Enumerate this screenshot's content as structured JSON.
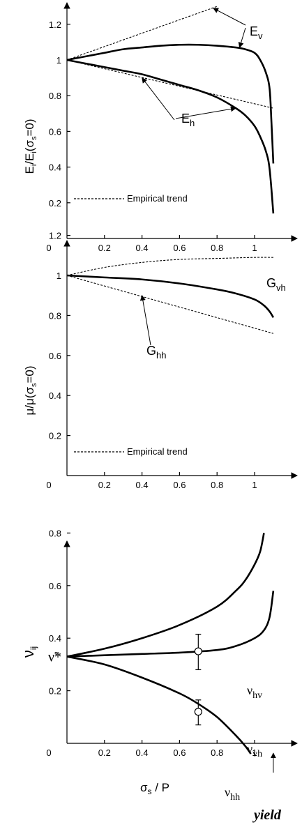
{
  "chart_data": [
    {
      "type": "line",
      "ylabel": "E_i/E_i(σ_s=0)",
      "xlim": [
        0,
        1.15
      ],
      "ylim": [
        0,
        1.32
      ],
      "xticks": [
        "0",
        "0.2",
        "0.4",
        "0.6",
        "0.8",
        "1"
      ],
      "yticks": [
        "0.2",
        "0.4",
        "0.6",
        "0.8",
        "1",
        "1.2"
      ],
      "legend": {
        "label": "Empirical trend",
        "placement": "bottom-left",
        "style": "dashed"
      },
      "series": [
        {
          "name": "E_v",
          "style": "solid",
          "x": [
            0,
            0.1,
            0.2,
            0.3,
            0.4,
            0.5,
            0.6,
            0.7,
            0.8,
            0.9,
            0.95,
            1.0,
            1.03,
            1.06,
            1.08,
            1.09,
            1.1
          ],
          "y": [
            1.0,
            1.02,
            1.04,
            1.06,
            1.07,
            1.08,
            1.085,
            1.085,
            1.08,
            1.07,
            1.06,
            1.04,
            1.0,
            0.93,
            0.84,
            0.65,
            0.42
          ]
        },
        {
          "name": "E_h",
          "style": "solid",
          "x": [
            0,
            0.1,
            0.2,
            0.3,
            0.4,
            0.5,
            0.6,
            0.7,
            0.8,
            0.9,
            0.95,
            1.0,
            1.03,
            1.06,
            1.08,
            1.1
          ],
          "y": [
            1.0,
            0.98,
            0.96,
            0.94,
            0.92,
            0.89,
            0.86,
            0.83,
            0.79,
            0.73,
            0.69,
            0.63,
            0.57,
            0.49,
            0.39,
            0.14
          ]
        },
        {
          "name": "E_v",
          "style": "dashed",
          "x": [
            0,
            0.8
          ],
          "y": [
            1.0,
            1.3
          ]
        },
        {
          "name": "E_h",
          "style": "dashed",
          "x": [
            0,
            1.1
          ],
          "y": [
            1.0,
            0.73
          ]
        }
      ],
      "annotations": [
        {
          "label": "E_v",
          "arrow_to": {
            "x": 0.92,
            "y": 1.07
          }
        },
        {
          "label": "E_v",
          "arrow_to": {
            "x": 0.78,
            "y": 1.29
          }
        },
        {
          "label": "E_h",
          "arrow_to": {
            "x": 0.9,
            "y": 0.73
          }
        },
        {
          "label": "E_h",
          "arrow_to": {
            "x": 0.4,
            "y": 0.9
          }
        }
      ]
    },
    {
      "type": "line",
      "ylabel": "μ/μ(σ_s=0)",
      "xlim": [
        0,
        1.15
      ],
      "ylim": [
        0,
        1.32
      ],
      "xticks": [
        "0",
        "0.2",
        "0.4",
        "0.6",
        "0.8",
        "1"
      ],
      "yticks": [
        "0.2",
        "0.4",
        "0.6",
        "0.8",
        "1",
        "1.2"
      ],
      "legend": {
        "label": "Empirical trend",
        "placement": "bottom-left",
        "style": "dashed"
      },
      "series": [
        {
          "name": "G_hh",
          "style": "solid",
          "x": [
            0,
            0.2,
            0.4,
            0.6,
            0.8,
            0.9,
            1.0,
            1.05,
            1.08,
            1.1
          ],
          "y": [
            1.0,
            0.99,
            0.98,
            0.96,
            0.93,
            0.91,
            0.88,
            0.85,
            0.82,
            0.79
          ]
        },
        {
          "name": "G_vh",
          "style": "dashed",
          "x": [
            0,
            0.2,
            0.4,
            0.6,
            0.8,
            1.0,
            1.1
          ],
          "y": [
            1.0,
            1.04,
            1.065,
            1.08,
            1.085,
            1.09,
            1.09
          ]
        },
        {
          "name": "G_hh",
          "style": "dashed",
          "x": [
            0,
            1.1
          ],
          "y": [
            1.0,
            0.71
          ]
        }
      ],
      "labels": {
        "G_vh": "G_vh",
        "G_hh": "G_hh"
      },
      "annotations": [
        {
          "label": "G_hh",
          "arrow_to": {
            "x": 0.4,
            "y": 0.9
          }
        }
      ]
    },
    {
      "type": "line",
      "xlabel": "σ_s / P",
      "ylabel": "ν_ij",
      "xlim": [
        0,
        1.15
      ],
      "ylim": [
        0,
        0.88
      ],
      "xticks": [
        "0",
        "0.2",
        "0.4",
        "0.6",
        "0.8",
        "1"
      ],
      "yticks": [
        "0.2",
        "0.4",
        "0.6",
        "0.8"
      ],
      "y_special_tick": {
        "label": "ν̃*",
        "value": 0.33
      },
      "series": [
        {
          "name": "ν_hv",
          "style": "solid",
          "x": [
            0,
            0.2,
            0.4,
            0.6,
            0.8,
            0.9,
            0.95,
            1.0,
            1.03,
            1.05
          ],
          "y": [
            0.33,
            0.36,
            0.4,
            0.45,
            0.52,
            0.58,
            0.62,
            0.68,
            0.73,
            0.8
          ]
        },
        {
          "name": "ν_vh",
          "style": "solid",
          "x": [
            0,
            0.2,
            0.4,
            0.6,
            0.8,
            0.9,
            1.0,
            1.05,
            1.08,
            1.1
          ],
          "y": [
            0.33,
            0.335,
            0.34,
            0.345,
            0.355,
            0.37,
            0.4,
            0.43,
            0.48,
            0.58
          ]
        },
        {
          "name": "ν_hh",
          "style": "solid",
          "x": [
            0,
            0.2,
            0.4,
            0.6,
            0.7,
            0.8,
            0.9,
            0.95,
            0.98
          ],
          "y": [
            0.33,
            0.3,
            0.25,
            0.19,
            0.15,
            0.1,
            0.03,
            -0.01,
            -0.04
          ]
        }
      ],
      "points": [
        {
          "x": 0.7,
          "y": 0.35,
          "ylow": 0.28,
          "yhigh": 0.415
        },
        {
          "x": 0.7,
          "y": 0.12,
          "ylow": 0.07,
          "yhigh": 0.165
        }
      ],
      "annotations": [
        {
          "label": "yield",
          "arrow_to": {
            "x": 1.1,
            "y": 0
          }
        }
      ]
    }
  ],
  "labels": {
    "panel1": {
      "Ev": "E",
      "Ev_sub": "v",
      "Eh": "E",
      "Eh_sub": "h",
      "legend": "Empirical trend"
    },
    "panel2": {
      "Gvh": "G",
      "Gvh_sub": "vh",
      "Ghh": "G",
      "Ghh_sub": "hh",
      "legend": "Empirical trend"
    },
    "panel3": {
      "nuhv": "ν",
      "nuhv_sub": "hv",
      "nuvh": "ν",
      "nuvh_sub": "vh",
      "nuhh": "ν",
      "nuhh_sub": "hh",
      "yield": "yield"
    }
  }
}
